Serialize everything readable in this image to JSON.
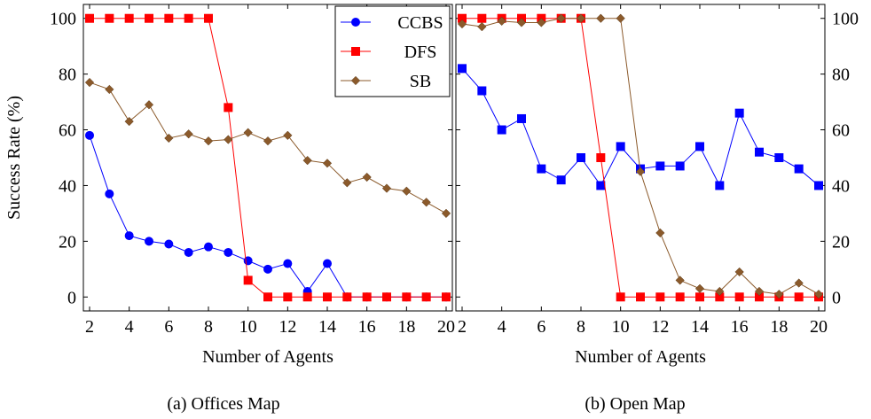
{
  "chart_data": [
    {
      "type": "line",
      "caption": "(a) Offices Map",
      "xlabel": "Number of Agents",
      "ylabel": "Success Rate (%)",
      "xlim": [
        2,
        20
      ],
      "ylim": [
        -5,
        105
      ],
      "x_ticks": [
        2,
        4,
        6,
        8,
        10,
        12,
        14,
        16,
        18,
        20
      ],
      "y_ticks": [
        0,
        20,
        40,
        60,
        80,
        100
      ],
      "legend_position": "top-right",
      "series": [
        {
          "name": "CCBS",
          "color": "#0000ff",
          "marker": "circle",
          "x": [
            2,
            3,
            4,
            5,
            6,
            7,
            8,
            9,
            10,
            11,
            12,
            13,
            14,
            15,
            16,
            17,
            18,
            19,
            20
          ],
          "values": [
            58,
            37,
            22,
            20,
            19,
            16,
            18,
            16,
            13,
            10,
            12,
            2,
            12,
            0,
            0,
            0,
            0,
            0,
            0
          ]
        },
        {
          "name": "DFS",
          "color": "#ff0000",
          "marker": "square",
          "x": [
            2,
            3,
            4,
            5,
            6,
            7,
            8,
            9,
            10,
            11,
            12,
            13,
            14,
            15,
            16,
            17,
            18,
            19,
            20
          ],
          "values": [
            100,
            100,
            100,
            100,
            100,
            100,
            100,
            68,
            6,
            0,
            0,
            0,
            0,
            0,
            0,
            0,
            0,
            0,
            0
          ]
        },
        {
          "name": "SB",
          "color": "#8b5a2b",
          "marker": "diamond",
          "x": [
            2,
            3,
            4,
            5,
            6,
            7,
            8,
            9,
            10,
            11,
            12,
            13,
            14,
            15,
            16,
            17,
            18,
            19,
            20
          ],
          "values": [
            77,
            74.5,
            63,
            69,
            57,
            58.5,
            56,
            56.5,
            59,
            56,
            58,
            49,
            48,
            41,
            43,
            39,
            38,
            34,
            30
          ]
        }
      ]
    },
    {
      "type": "line",
      "caption": "(b) Open Map",
      "xlabel": "Number of Agents",
      "ylabel": "",
      "xlim": [
        2,
        20
      ],
      "ylim": [
        -5,
        105
      ],
      "x_ticks": [
        2,
        4,
        6,
        8,
        10,
        12,
        14,
        16,
        18,
        20
      ],
      "y_ticks": [
        0,
        20,
        40,
        60,
        80,
        100
      ],
      "series": [
        {
          "name": "CCBS",
          "color": "#0000ff",
          "marker": "square",
          "x": [
            2,
            3,
            4,
            5,
            6,
            7,
            8,
            9,
            10,
            11,
            12,
            13,
            14,
            15,
            16,
            17,
            18,
            19,
            20
          ],
          "values": [
            82,
            74,
            60,
            64,
            46,
            42,
            50,
            40,
            54,
            46,
            47,
            47,
            54,
            40,
            66,
            52,
            50,
            46,
            40
          ]
        },
        {
          "name": "DFS",
          "color": "#ff0000",
          "marker": "square",
          "x": [
            2,
            3,
            4,
            5,
            6,
            7,
            8,
            9,
            10,
            11,
            12,
            13,
            14,
            15,
            16,
            17,
            18,
            19,
            20
          ],
          "values": [
            100,
            100,
            100,
            100,
            100,
            100,
            100,
            50,
            0,
            0,
            0,
            0,
            0,
            0,
            0,
            0,
            0,
            0,
            0
          ]
        },
        {
          "name": "SB",
          "color": "#8b5a2b",
          "marker": "diamond",
          "x": [
            2,
            3,
            4,
            5,
            6,
            7,
            8,
            9,
            10,
            11,
            12,
            13,
            14,
            15,
            16,
            17,
            18,
            19,
            20
          ],
          "values": [
            98,
            97,
            99,
            98.5,
            98.5,
            100,
            100,
            100,
            100,
            45,
            23,
            6,
            3,
            2,
            9,
            2,
            1,
            5,
            1
          ]
        }
      ]
    }
  ]
}
